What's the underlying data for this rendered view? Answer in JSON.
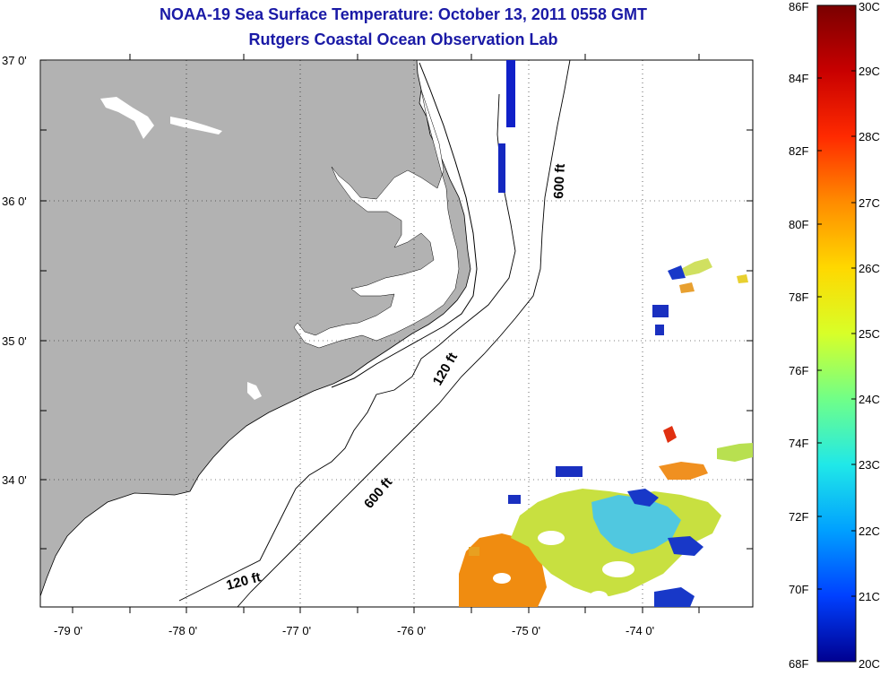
{
  "title": {
    "line1": "NOAA-19 Sea Surface Temperature:  October 13, 2011 0558 GMT",
    "line2": "Rutgers Coastal Ocean Observation Lab"
  },
  "map": {
    "lat_labels": [
      "37 0'",
      "36 0'",
      "35 0'",
      "34 0'"
    ],
    "lon_labels": [
      "-79 0'",
      "-78 0'",
      "-77 0'",
      "-76 0'",
      "-75 0'",
      "-74 0'"
    ],
    "contour_labels": [
      "600 ft",
      "120 ft",
      "600 ft",
      "120 ft"
    ],
    "land_color": "#b2b2b2",
    "grid": "dotted"
  },
  "colorbar": {
    "f_labels": [
      "86F",
      "84F",
      "82F",
      "80F",
      "78F",
      "76F",
      "74F",
      "72F",
      "70F",
      "68F"
    ],
    "c_labels": [
      "30C",
      "29C",
      "28C",
      "27C",
      "26C",
      "25C",
      "24C",
      "23C",
      "22C",
      "21C",
      "20C"
    ],
    "colors": [
      "#7a0000",
      "#c80000",
      "#ff2a00",
      "#ff8c00",
      "#ffd800",
      "#d8ff28",
      "#70ff88",
      "#20e8e8",
      "#00a0ff",
      "#0040ff",
      "#000090"
    ]
  }
}
